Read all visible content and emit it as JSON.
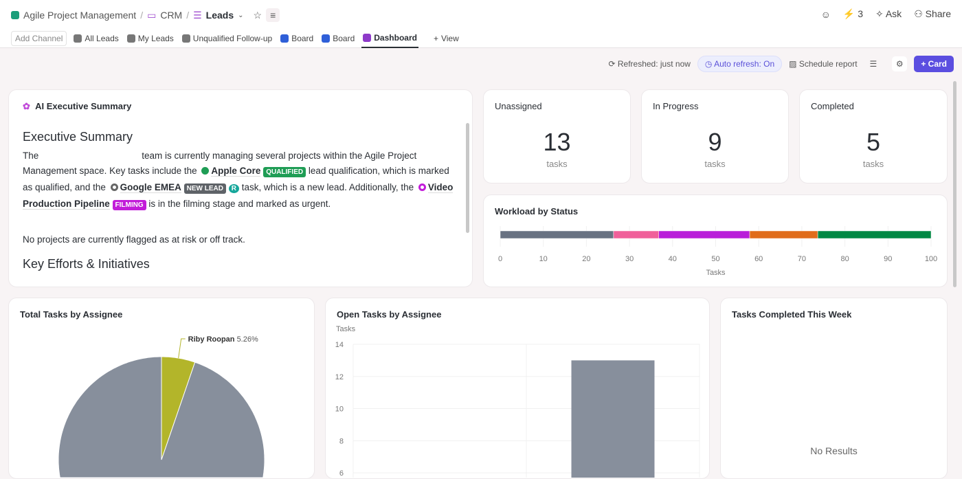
{
  "breadcrumb": {
    "space": "Agile Project Management",
    "folder": "CRM",
    "list": "Leads"
  },
  "topbar": {
    "automations_count": "3",
    "ask": "Ask",
    "share": "Share"
  },
  "tabs": {
    "add_channel": "Add Channel",
    "items": [
      "All Leads",
      "My Leads",
      "Unqualified Follow-up",
      "Board",
      "Board",
      "Dashboard"
    ],
    "active": "Dashboard",
    "add_view": "View"
  },
  "toolbar": {
    "refreshed": "Refreshed: just now",
    "auto_refresh": "Auto refresh: On",
    "schedule": "Schedule report",
    "add_card": "Card"
  },
  "summary": {
    "card_title": "AI Executive Summary",
    "heading": "Executive Summary",
    "p1a": "The",
    "p1b": "team is currently managing several projects within the Agile Project Management space. Key tasks include the",
    "task1": "Apple Core",
    "tag1": "QUALIFIED",
    "p1c": "lead qualification, which is marked as qualified, and the",
    "task2": "Google EMEA",
    "tag2": "NEW LEAD",
    "avatar": "R",
    "p1d": "task, which is a new lead. Additionally, the",
    "task3": "Video Production Pipeline",
    "tag3": "FILMING",
    "p1e": "is in the filming stage and marked as urgent.",
    "p2": "No projects are currently flagged as at risk or off track.",
    "heading2": "Key Efforts & Initiatives"
  },
  "stats": [
    {
      "title": "Unassigned",
      "value": "13",
      "unit": "tasks"
    },
    {
      "title": "In Progress",
      "value": "9",
      "unit": "tasks"
    },
    {
      "title": "Completed",
      "value": "5",
      "unit": "tasks"
    }
  ],
  "colors": {
    "accent": "#5b4ee0",
    "qualified": "#1f9d55",
    "new_lead": "#5f6368",
    "filming": "#c21cd9"
  },
  "chart_data": [
    {
      "type": "bar",
      "orientation": "horizontal-stacked",
      "title": "Workload by Status",
      "xlabel": "Tasks",
      "xlim": [
        0,
        100
      ],
      "ticks": [
        0,
        10,
        20,
        30,
        40,
        50,
        60,
        70,
        80,
        90,
        100
      ],
      "series": [
        {
          "values": [
            26.3
          ],
          "color": "#687282"
        },
        {
          "values": [
            10.5
          ],
          "color": "#f0609a"
        },
        {
          "values": [
            21.1
          ],
          "color": "#b91ed9"
        },
        {
          "values": [
            15.8
          ],
          "color": "#e06c1a"
        },
        {
          "values": [
            26.3
          ],
          "color": "#008844"
        }
      ]
    },
    {
      "type": "pie",
      "title": "Total Tasks by Assignee",
      "slices": [
        {
          "label": "Riby Roopan",
          "value": 5.26,
          "color": "#b3b52a"
        },
        {
          "label": "",
          "value": 94.74,
          "color": "#878f9c"
        }
      ]
    },
    {
      "type": "bar",
      "title": "Open Tasks by Assignee",
      "ylabel": "Tasks",
      "ylim_visible": [
        6,
        14
      ],
      "ticks": [
        6,
        8,
        10,
        12,
        14
      ],
      "categories": [
        "",
        ""
      ],
      "values": [
        null,
        13
      ],
      "color": "#878f9c"
    },
    {
      "type": "bar",
      "title": "Tasks Completed This Week",
      "empty_message": "No Results"
    }
  ]
}
